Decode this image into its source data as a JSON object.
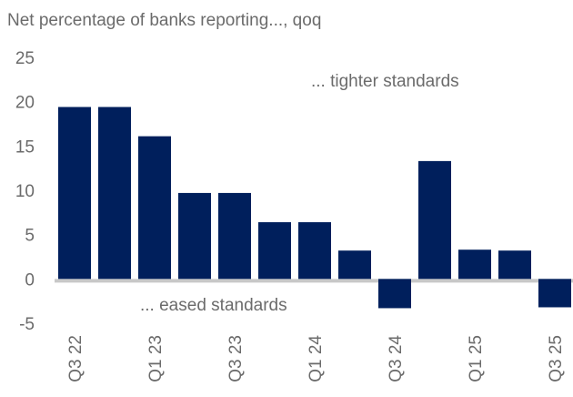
{
  "chart_data": {
    "type": "bar",
    "title": "Net percentage of banks reporting..., qoq",
    "categories": [
      "Q3 22",
      "Q4 22",
      "Q1 23",
      "Q2 23",
      "Q3 23",
      "Q4 23",
      "Q1 24",
      "Q2 24",
      "Q3 24",
      "Q4 24",
      "Q1 25",
      "Q2 25",
      "Q3 25"
    ],
    "x_tick_labels": [
      "Q3 22",
      "Q1 23",
      "Q3 23",
      "Q1 24",
      "Q3 24",
      "Q1 25",
      "Q3 25"
    ],
    "values": [
      19.4,
      19.4,
      16.1,
      9.7,
      9.7,
      6.4,
      6.4,
      3.2,
      -3.3,
      13.3,
      3.3,
      3.2,
      -3.2
    ],
    "ylim": [
      -5,
      25
    ],
    "y_ticks": [
      -5,
      0,
      5,
      10,
      15,
      20,
      25
    ],
    "grid": false,
    "bar_color": "#001f5c",
    "zero_line_color": "#c8c8c8",
    "annotations": {
      "upper": "... tighter standards",
      "lower": "... eased standards"
    },
    "xlabel": "",
    "ylabel": ""
  }
}
